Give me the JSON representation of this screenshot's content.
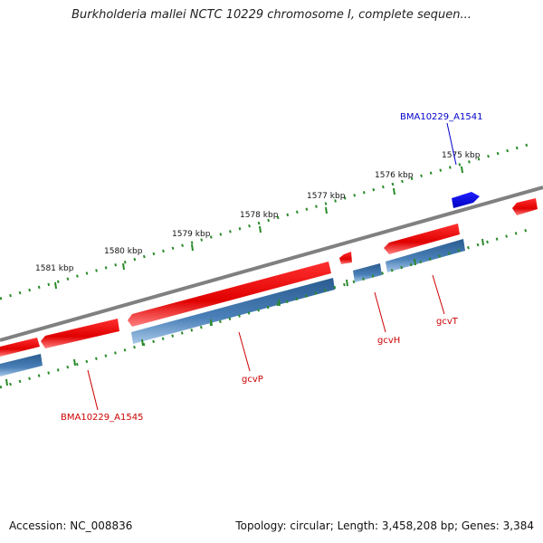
{
  "title": "Burkholderia mallei NCTC 10229 chromosome I, complete sequen...",
  "footer": {
    "accession": "Accession: NC_008836",
    "summary": "Topology: circular; Length: 3,458,208 bp; Genes: 3,384"
  },
  "scale_labels": [
    "1575 kbp",
    "1576 kbp",
    "1577 kbp",
    "1578 kbp",
    "1579 kbp",
    "1580 kbp",
    "1581 kbp"
  ],
  "gene_labels": [
    {
      "text": "BMA10229_A1541",
      "color": "#0000cc"
    },
    {
      "text": "gcvT",
      "color": "#cc0000"
    },
    {
      "text": "gcvH",
      "color": "#cc0000"
    },
    {
      "text": "gcvP",
      "color": "#cc0000"
    },
    {
      "text": "BMA10229_A1545",
      "color": "#cc0000"
    }
  ],
  "colors": {
    "backbone": "#808080",
    "forward_gene": "#ee1111",
    "reverse_gene": "#0000ee",
    "cds": "#4a7fb5",
    "scale_ticks": "#2a8a2a"
  }
}
